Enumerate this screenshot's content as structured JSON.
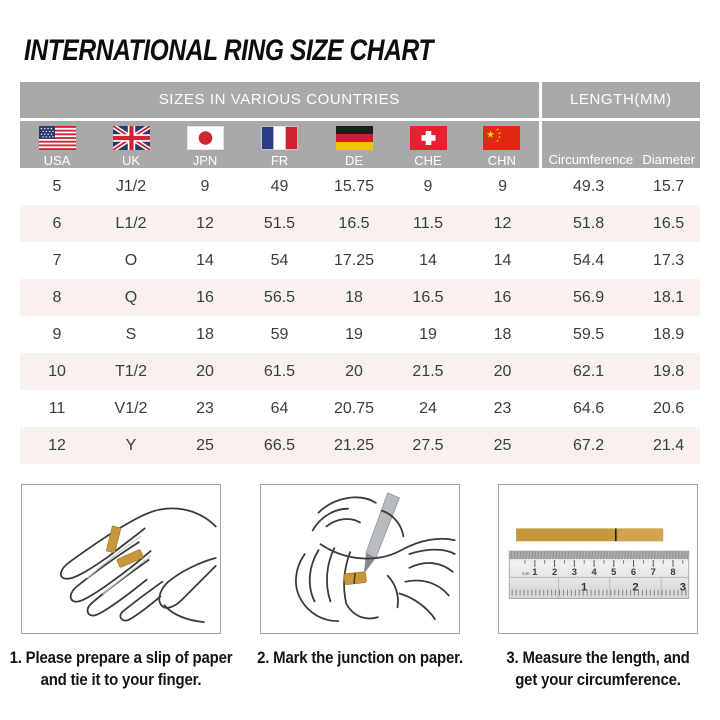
{
  "title": "INTERNATIONAL RING SIZE CHART",
  "chart_data": {
    "type": "table",
    "title": "INTERNATIONAL RING SIZE CHART",
    "column_groups": [
      "SIZES IN VARIOUS COUNTRIES",
      "LENGTH(MM)"
    ],
    "columns": [
      "USA",
      "UK",
      "JPN",
      "FR",
      "DE",
      "CHE",
      "CHN",
      "Circumference",
      "Diameter"
    ],
    "rows": [
      [
        "5",
        "J1/2",
        "9",
        "49",
        "15.75",
        "9",
        "9",
        "49.3",
        "15.7"
      ],
      [
        "6",
        "L1/2",
        "12",
        "51.5",
        "16.5",
        "11.5",
        "12",
        "51.8",
        "16.5"
      ],
      [
        "7",
        "O",
        "14",
        "54",
        "17.25",
        "14",
        "14",
        "54.4",
        "17.3"
      ],
      [
        "8",
        "Q",
        "16",
        "56.5",
        "18",
        "16.5",
        "16",
        "56.9",
        "18.1"
      ],
      [
        "9",
        "S",
        "18",
        "59",
        "19",
        "19",
        "18",
        "59.5",
        "18.9"
      ],
      [
        "10",
        "T1/2",
        "20",
        "61.5",
        "20",
        "21.5",
        "20",
        "62.1",
        "19.8"
      ],
      [
        "11",
        "V1/2",
        "23",
        "64",
        "20.75",
        "24",
        "23",
        "64.6",
        "20.6"
      ],
      [
        "12",
        "Y",
        "25",
        "66.5",
        "21.25",
        "27.5",
        "25",
        "67.2",
        "21.4"
      ]
    ]
  },
  "flags": [
    "usa-flag",
    "uk-flag",
    "japan-flag",
    "france-flag",
    "germany-flag",
    "switzerland-flag",
    "china-flag"
  ],
  "instructions": {
    "steps": [
      {
        "illustration": "hand-with-paper-slip",
        "caption_lines": [
          "1. Please prepare a slip of paper",
          "and tie it to your finger."
        ]
      },
      {
        "illustration": "mark-junction-with-pen",
        "caption_lines": [
          "2. Mark the junction on paper."
        ]
      },
      {
        "illustration": "ruler-measurement",
        "caption_lines": [
          "3. Measure the length, and",
          "get your circumference."
        ]
      }
    ]
  },
  "ruler": {
    "unit_label": "mm",
    "cm_scale": [
      "1",
      "2",
      "3",
      "4",
      "5",
      "6",
      "7",
      "8"
    ],
    "inch_scale": [
      "1",
      "2",
      "3"
    ]
  },
  "colors": {
    "header_bg": "#a9a9a9",
    "header_text": "#ffffff",
    "row_alt_bg": "#f8f1ee",
    "data_text": "#3c3c3c",
    "paper_strip_gold": "#c6973d"
  }
}
